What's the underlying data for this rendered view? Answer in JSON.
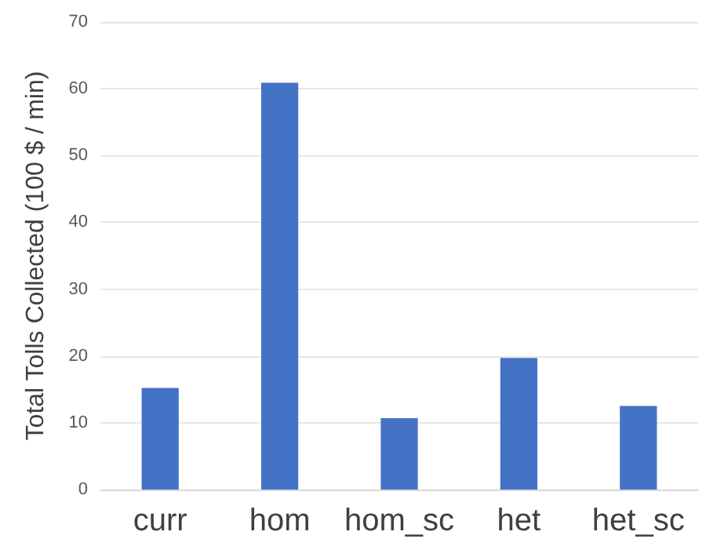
{
  "chart_data": {
    "type": "bar",
    "ylabel": "Total Tolls Collected (100 $ / min)",
    "categories": [
      "curr",
      "hom",
      "hom_sc",
      "het",
      "het_sc"
    ],
    "values": [
      15.2,
      60.9,
      10.7,
      19.7,
      12.5
    ],
    "color": "#4472c4",
    "ylim": [
      0,
      70
    ],
    "yticks": [
      0,
      10,
      20,
      30,
      40,
      50,
      60,
      70
    ],
    "grid": "y"
  }
}
